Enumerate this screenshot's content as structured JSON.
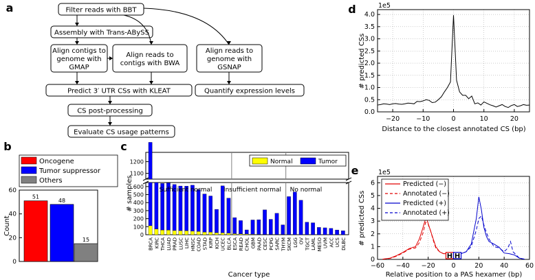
{
  "panel_labels": {
    "a": "a",
    "b": "b",
    "c": "c",
    "d": "d",
    "e": "e"
  },
  "flowchart": {
    "nodes": [
      {
        "id": "bbt",
        "lines": [
          "Filter reads with BBT"
        ]
      },
      {
        "id": "abyss",
        "lines": [
          "Assembly with Trans-ABySS"
        ]
      },
      {
        "id": "gmap",
        "lines": [
          "Align contigs to",
          "genome with",
          "GMAP"
        ]
      },
      {
        "id": "bwa",
        "lines": [
          "Align reads to",
          "contigs with BWA"
        ]
      },
      {
        "id": "gsnap",
        "lines": [
          "Align reads to",
          "genome with",
          "GSNAP"
        ]
      },
      {
        "id": "kleat",
        "lines": [
          "Predict 3′ UTR CSs with KLEAT"
        ]
      },
      {
        "id": "quant",
        "lines": [
          "Quantify expression levels"
        ]
      },
      {
        "id": "post",
        "lines": [
          "CS post-processing"
        ]
      },
      {
        "id": "eval",
        "lines": [
          "Evaluate CS usage patterns"
        ]
      }
    ]
  },
  "chart_data": [
    {
      "id": "b",
      "type": "bar",
      "categories": [
        "Oncogene",
        "Tumor suppressor",
        "Others"
      ],
      "values": [
        51,
        48,
        15
      ],
      "value_labels": [
        "51",
        "48",
        "15"
      ],
      "colors": [
        "#ff0000",
        "#0000ff",
        "#808080"
      ],
      "ylabel": "Count",
      "ylim": [
        0,
        60
      ],
      "yticks": [
        0,
        20,
        40,
        60
      ],
      "ytick_labels": [
        "0",
        "20",
        "40",
        "60"
      ],
      "legend": "top"
    },
    {
      "id": "c",
      "type": "bar",
      "stacked": true,
      "broken_axis": true,
      "categories": [
        "BRCA",
        "KIRC",
        "THCA",
        "LUAD",
        "PRAD",
        "LUSC",
        "LIHC",
        "HNSC",
        "COAD",
        "STAD",
        "KIRP",
        "KICH",
        "UCEC",
        "BLCA",
        "ESCA",
        "READ",
        "CHOL",
        "GBM",
        "PAAD",
        "CESC",
        "PCPG",
        "SARC",
        "THYM",
        "SKCM",
        "LGG",
        "OV",
        "TGCT",
        "LAML",
        "MESO",
        "UVM",
        "ACC",
        "UCS",
        "DLBC"
      ],
      "series": [
        {
          "name": "Normal",
          "color": "#ffff00",
          "values": [
            112,
            72,
            59,
            58,
            52,
            51,
            50,
            44,
            41,
            33,
            32,
            25,
            23,
            19,
            13,
            10,
            9,
            5,
            4,
            3,
            3,
            2,
            2,
            1,
            0,
            0,
            0,
            0,
            0,
            0,
            0,
            0,
            0
          ]
        },
        {
          "name": "Tumor",
          "color": "#0000ff",
          "values": [
            1254,
            609,
            580,
            588,
            574,
            556,
            556,
            573,
            522,
            475,
            451,
            291,
            586,
            437,
            200,
            166,
            51,
            179,
            183,
            307,
            189,
            265,
            121,
            474,
            533,
            430,
            156,
            149,
            91,
            86,
            79,
            59,
            50
          ]
        }
      ],
      "ylabel": "# samples",
      "xlabel": "Cancer type",
      "yticks_lower": [
        0,
        100,
        200,
        300,
        400,
        500,
        600
      ],
      "ytick_labels_lower": [
        "0",
        "100",
        "200",
        "300",
        "400",
        "500",
        "600"
      ],
      "yticks_upper": [
        1100,
        1200
      ],
      "ytick_labels_upper": [
        "1100",
        "1200"
      ],
      "group_dividers_after": [
        "BLCA",
        "THYM"
      ],
      "group_labels": [
        "Sufficient normal",
        "Insufficient normal",
        "No normal"
      ],
      "legend": "top-right"
    },
    {
      "id": "d",
      "type": "line",
      "x": [
        -25,
        -24,
        -23,
        -22,
        -21,
        -20,
        -19,
        -18,
        -17,
        -16,
        -15,
        -14,
        -13,
        -12,
        -11,
        -10,
        -9,
        -8,
        -7,
        -6,
        -5,
        -4,
        -3,
        -2,
        -1,
        0,
        1,
        2,
        3,
        4,
        5,
        6,
        7,
        8,
        9,
        10,
        11,
        12,
        13,
        14,
        15,
        16,
        17,
        18,
        19,
        20,
        21,
        22,
        23,
        24,
        25
      ],
      "y": [
        0.28,
        0.3,
        0.33,
        0.32,
        0.3,
        0.33,
        0.34,
        0.32,
        0.31,
        0.33,
        0.36,
        0.35,
        0.33,
        0.43,
        0.42,
        0.45,
        0.5,
        0.47,
        0.38,
        0.4,
        0.5,
        0.62,
        0.82,
        1.0,
        1.23,
        3.97,
        1.3,
        0.82,
        0.68,
        0.68,
        0.54,
        0.65,
        0.33,
        0.37,
        0.28,
        0.41,
        0.35,
        0.29,
        0.25,
        0.2,
        0.25,
        0.3,
        0.22,
        0.18,
        0.26,
        0.3,
        0.22,
        0.25,
        0.3,
        0.27,
        0.28
      ],
      "xlabel": "Distance to the closest annotated CS (bp)",
      "ylabel": "# predicted CSs",
      "yscale_label": "1e5",
      "xlim": [
        -25,
        25
      ],
      "ylim": [
        0,
        4.2
      ],
      "xticks": [
        -20,
        -10,
        0,
        10,
        20
      ],
      "xtick_labels": [
        "−20",
        "−10",
        "0",
        "10",
        "20"
      ],
      "yticks": [
        0,
        0.5,
        1,
        1.5,
        2,
        2.5,
        3,
        3.5,
        4
      ],
      "ytick_labels": [
        "0.0",
        "0.5",
        "1.0",
        "1.5",
        "2.0",
        "2.5",
        "3.0",
        "3.5",
        "4.0"
      ],
      "grid": true
    },
    {
      "id": "e",
      "type": "line",
      "series": [
        {
          "name": "Predicted (−)",
          "color": "#e00000",
          "style": "solid",
          "x": [
            -56,
            -50,
            -45,
            -40,
            -35,
            -30,
            -27,
            -25,
            -22,
            -21,
            -19,
            -17,
            -14,
            -11,
            -8,
            -5,
            -2,
            0
          ],
          "y": [
            0.02,
            0.1,
            0.3,
            0.55,
            0.85,
            1.0,
            1.6,
            2.2,
            3.2,
            3.1,
            2.5,
            1.9,
            1.0,
            0.6,
            0.45,
            0.45,
            0.35,
            0.3
          ]
        },
        {
          "name": "Annotated (−)",
          "color": "#e00000",
          "style": "dashed",
          "x": [
            -56,
            -50,
            -45,
            -40,
            -35,
            -30,
            -27,
            -24,
            -22,
            -20,
            -18,
            -16,
            -14,
            -11,
            -8,
            -5,
            -2,
            0
          ],
          "y": [
            0.02,
            0.08,
            0.25,
            0.5,
            0.8,
            0.9,
            1.3,
            2.1,
            2.9,
            2.75,
            2.2,
            1.5,
            0.9,
            0.6,
            0.45,
            0.45,
            0.35,
            0.3
          ]
        },
        {
          "name": "Predicted (+)",
          "color": "#0000cc",
          "style": "solid",
          "x": [
            0,
            3,
            6,
            10,
            14,
            18,
            20,
            22,
            24,
            26,
            28,
            32,
            36,
            40,
            44,
            48,
            52,
            56
          ],
          "y": [
            0.3,
            0.4,
            0.45,
            0.6,
            1.2,
            3.2,
            4.9,
            3.9,
            2.5,
            1.8,
            1.4,
            1.2,
            0.95,
            0.5,
            0.45,
            0.35,
            0.1,
            0.02
          ]
        },
        {
          "name": "Annotated (+)",
          "color": "#0000cc",
          "style": "dashed",
          "x": [
            0,
            3,
            6,
            10,
            14,
            18,
            20,
            22,
            24,
            26,
            28,
            32,
            36,
            40,
            43,
            45,
            47,
            52,
            56
          ],
          "y": [
            0.3,
            0.4,
            0.45,
            0.6,
            1.0,
            2.3,
            3.2,
            3.4,
            2.7,
            2.1,
            1.6,
            1.0,
            0.9,
            0.6,
            0.9,
            1.4,
            0.6,
            0.1,
            0.02
          ]
        }
      ],
      "xlabel": "Relative position to a PAS hexamer (bp)",
      "ylabel": "# predicted CSs",
      "yscale_label": "1e5",
      "xlim": [
        -60,
        60
      ],
      "ylim": [
        0,
        6.5
      ],
      "xticks": [
        -60,
        -40,
        -20,
        0,
        20,
        40,
        60
      ],
      "xtick_labels": [
        "−60",
        "−40",
        "−20",
        "0",
        "20",
        "40",
        "60"
      ],
      "yticks": [
        0,
        1,
        2,
        3,
        4,
        5,
        6
      ],
      "ytick_labels": [
        "0",
        "1",
        "2",
        "3",
        "4",
        "5",
        "6"
      ],
      "hexamer_boxes": [
        {
          "x0": -6,
          "x1": 0,
          "label": "H",
          "color": "#e00000"
        },
        {
          "x0": 0,
          "x1": 6,
          "label": "H",
          "color": "#0000cc"
        }
      ],
      "grid": true,
      "legend": "top-left"
    }
  ]
}
